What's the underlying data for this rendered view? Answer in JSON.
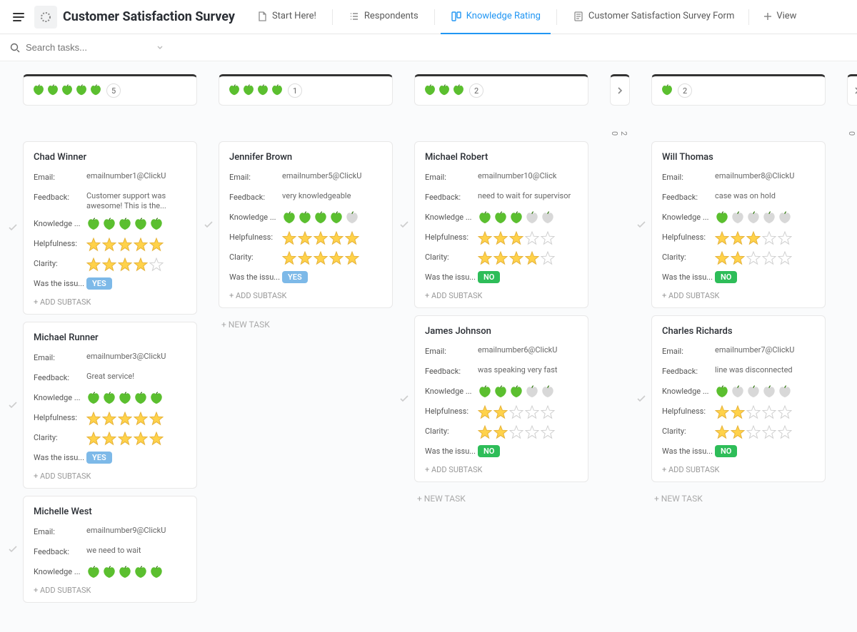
{
  "header": {
    "title": "Customer Satisfaction Survey",
    "tabs": [
      {
        "label": "Start Here!",
        "active": false,
        "icon": "doc"
      },
      {
        "label": "Respondents",
        "active": false,
        "icon": "list"
      },
      {
        "label": "Knowledge Rating",
        "active": true,
        "icon": "board"
      },
      {
        "label": "Customer Satisfaction Survey Form",
        "active": false,
        "icon": "form"
      }
    ],
    "add_view_label": "View"
  },
  "searchbar": {
    "placeholder": "Search tasks..."
  },
  "labels": {
    "email": "Email:",
    "feedback": "Feedback:",
    "knowledge": "Knowledge ...",
    "helpfulness": "Helpfulness:",
    "clarity": "Clarity:",
    "issue": "Was the issu...",
    "add_subtask": "+ ADD SUBTASK",
    "new_task": "+ NEW TASK",
    "yes": "YES",
    "no": "NO"
  },
  "columns": [
    {
      "apples": 5,
      "count": 5,
      "cards": [
        {
          "name": "Chad Winner",
          "email": "emailnumber1@ClickU",
          "feedback": "Customer support was awesome! This is the...",
          "wrap": true,
          "knowledge": 5,
          "helpfulness": 5,
          "clarity": 4,
          "resolved": "YES"
        },
        {
          "name": "Michael Runner",
          "email": "emailnumber3@ClickU",
          "feedback": "Great service!",
          "wrap": false,
          "knowledge": 5,
          "helpfulness": 5,
          "clarity": 5,
          "resolved": "YES"
        },
        {
          "name": "Michelle West",
          "email": "emailnumber9@ClickU",
          "feedback": "we need to wait",
          "wrap": false,
          "knowledge": 5,
          "helpfulness": null,
          "clarity": null,
          "resolved": null
        }
      ],
      "show_new_task": false
    },
    {
      "apples": 4,
      "count": 1,
      "cards": [
        {
          "name": "Jennifer Brown",
          "email": "emailnumber5@ClickU",
          "feedback": "very knowledgeable",
          "wrap": false,
          "knowledge": 4,
          "helpfulness": 5,
          "clarity": 5,
          "resolved": "YES"
        }
      ],
      "show_new_task": true
    },
    {
      "apples": 3,
      "count": 2,
      "cards": [
        {
          "name": "Michael Robert",
          "email": "emailnumber10@Click",
          "feedback": "need to wait for supervisor",
          "wrap": true,
          "knowledge": 3,
          "helpfulness": 3,
          "clarity": 4,
          "resolved": "NO"
        },
        {
          "name": "James Johnson",
          "email": "emailnumber6@ClickU",
          "feedback": "was speaking very fast",
          "wrap": false,
          "knowledge": 3,
          "helpfulness": 2,
          "clarity": 2,
          "resolved": "NO"
        }
      ],
      "show_new_task": true
    }
  ],
  "collapsed_a": {
    "label": "2   0"
  },
  "column_right": {
    "apples": 1,
    "count": 2,
    "cards": [
      {
        "name": "Will Thomas",
        "email": "emailnumber8@ClickU",
        "feedback": "case was on hold",
        "wrap": false,
        "knowledge": 1,
        "helpfulness": 3,
        "clarity": 2,
        "resolved": "NO"
      },
      {
        "name": "Charles Richards",
        "email": "emailnumber7@ClickU",
        "feedback": "line was disconnected",
        "wrap": false,
        "knowledge": 1,
        "helpfulness": 2,
        "clarity": 2,
        "resolved": "NO"
      }
    ],
    "show_new_task": true
  },
  "collapsed_b": {
    "label": "0"
  },
  "style": {
    "apple_green": "#5bbf2f",
    "star_gold": "#ffd24a",
    "accent_blue": "#2196f3",
    "pill_yes_bg": "#7db9e8",
    "pill_no_bg": "#2ebd59",
    "card_border": "#e8e8e8",
    "background": "#fafbfc"
  }
}
